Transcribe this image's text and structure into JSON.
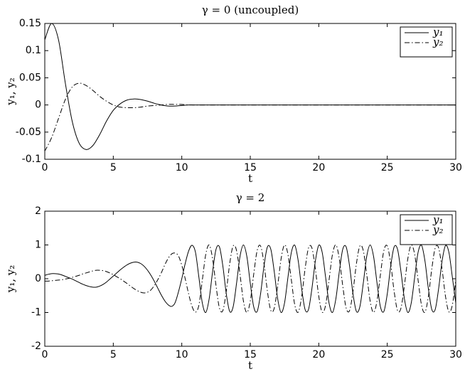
{
  "chart_data": [
    {
      "type": "line",
      "title": "γ = 0 (uncoupled)",
      "x_label": "t",
      "y_label": "y₁, y₂",
      "x": [
        0,
        0.5,
        1,
        1.5,
        2,
        2.5,
        3,
        3.5,
        4,
        4.5,
        5,
        5.5,
        6,
        6.5,
        7,
        7.5,
        8,
        8.5,
        9,
        9.5,
        10,
        10.5,
        11,
        11.5,
        12,
        15,
        20,
        25,
        30
      ],
      "series": [
        {
          "name": "y₁",
          "color": "#000000",
          "linestyle": "solid",
          "values": [
            0.12,
            0.15,
            0.12,
            0.04,
            -0.03,
            -0.07,
            -0.082,
            -0.075,
            -0.055,
            -0.03,
            -0.01,
            0.002,
            0.009,
            0.011,
            0.01,
            0.007,
            0.003,
            0,
            -0.002,
            -0.002,
            -0.001,
            0,
            0,
            0,
            0,
            0,
            0,
            0,
            0
          ]
        },
        {
          "name": "y₂",
          "color": "#000000",
          "linestyle": "dashdot",
          "values": [
            -0.085,
            -0.06,
            -0.025,
            0.01,
            0.033,
            0.04,
            0.036,
            0.027,
            0.016,
            0.007,
            0,
            -0.004,
            -0.005,
            -0.005,
            -0.004,
            -0.002,
            -0.001,
            0,
            0.001,
            0.001,
            0.001,
            0,
            0,
            0,
            0,
            0,
            0,
            0,
            0
          ]
        }
      ],
      "xlim": [
        0,
        30
      ],
      "xticks": [
        0,
        5,
        10,
        15,
        20,
        25,
        30
      ],
      "ylim": [
        -0.1,
        0.15
      ],
      "yticks": [
        -0.1,
        -0.05,
        0,
        0.05,
        0.1,
        0.15
      ],
      "legend": "upper right"
    },
    {
      "type": "line",
      "title": "γ = 2",
      "x_label": "t",
      "y_label": "y₁, y₂",
      "x": [
        0,
        0.25,
        0.5,
        0.75,
        1,
        1.25,
        1.5,
        1.75,
        2,
        2.25,
        2.5,
        2.75,
        3,
        3.25,
        3.5,
        3.75,
        4,
        4.25,
        4.5,
        4.75,
        5,
        5.25,
        5.5,
        5.75,
        6,
        6.25,
        6.5,
        6.75,
        7,
        7.25,
        7.5,
        7.75,
        8,
        8.25,
        8.5,
        8.75,
        9,
        9.25,
        9.5,
        9.75,
        10,
        10.25,
        10.5,
        10.75,
        11,
        11.25,
        11.5,
        11.75,
        12,
        12.25,
        12.5,
        12.75,
        13,
        13.25,
        13.5,
        13.75,
        14,
        14.25,
        14.5,
        14.75,
        15,
        15.25,
        15.5,
        15.75,
        16,
        16.25,
        16.5,
        16.75,
        17,
        17.25,
        17.5,
        17.75,
        18,
        18.25,
        18.5,
        18.75,
        19,
        19.25,
        19.5,
        19.75,
        20,
        20.25,
        20.5,
        20.75,
        21,
        21.25,
        21.5,
        21.75,
        22,
        22.25,
        22.5,
        22.75,
        23,
        23.25,
        23.5,
        23.75,
        24,
        24.25,
        24.5,
        24.75,
        25,
        25.25,
        25.5,
        25.75,
        26,
        26.25,
        26.5,
        26.75,
        27,
        27.25,
        27.5,
        27.75,
        28,
        28.25,
        28.5,
        28.75,
        29,
        29.25,
        29.5,
        29.75,
        30
      ],
      "series": [
        {
          "name": "y₁",
          "color": "#000000",
          "linestyle": "solid",
          "values": [
            0.1,
            0.13,
            0.15,
            0.15,
            0.14,
            0.11,
            0.07,
            0.03,
            -0.01,
            -0.06,
            -0.11,
            -0.16,
            -0.2,
            -0.23,
            -0.25,
            -0.25,
            -0.22,
            -0.17,
            -0.1,
            -0.01,
            0.08,
            0.17,
            0.26,
            0.34,
            0.41,
            0.46,
            0.49,
            0.49,
            0.45,
            0.37,
            0.25,
            0.1,
            -0.08,
            -0.28,
            -0.48,
            -0.65,
            -0.77,
            -0.82,
            -0.72,
            -0.4,
            0,
            0.45,
            0.82,
            0.99,
            0.78,
            0.04,
            -0.72,
            -1,
            -0.59,
            0.21,
            0.87,
            0.94,
            0.37,
            -0.45,
            -0.97,
            -0.83,
            -0.13,
            0.66,
            1,
            0.66,
            -0.13,
            -0.83,
            -0.97,
            -0.45,
            0.37,
            0.94,
            0.87,
            0.21,
            -0.59,
            -1,
            -0.72,
            0.04,
            0.78,
            0.99,
            0.53,
            -0.29,
            -0.91,
            -0.91,
            -0.29,
            0.52,
            0.99,
            0.78,
            0.04,
            -0.72,
            -1,
            -0.59,
            0.21,
            0.87,
            0.94,
            0.37,
            -0.45,
            -0.97,
            -0.83,
            -0.13,
            0.66,
            1,
            0.66,
            -0.12,
            -0.83,
            -0.97,
            -0.45,
            0.37,
            0.94,
            0.87,
            0.21,
            -0.59,
            -1,
            -0.72,
            0.04,
            0.78,
            0.99,
            0.53,
            -0.29,
            -0.91,
            -0.91,
            -0.29,
            0.52,
            0.98,
            0.78,
            0.05,
            -0.72
          ]
        },
        {
          "name": "y₂",
          "color": "#000000",
          "linestyle": "dashdot",
          "values": [
            -0.07,
            -0.07,
            -0.06,
            -0.05,
            -0.04,
            -0.03,
            -0.01,
            0.01,
            0.04,
            0.07,
            0.1,
            0.14,
            0.17,
            0.2,
            0.23,
            0.25,
            0.25,
            0.24,
            0.21,
            0.17,
            0.12,
            0.06,
            0,
            -0.07,
            -0.14,
            -0.22,
            -0.29,
            -0.35,
            -0.4,
            -0.42,
            -0.4,
            -0.33,
            -0.2,
            -0.03,
            0.17,
            0.4,
            0.6,
            0.73,
            0.76,
            0.68,
            0.4,
            0,
            -0.45,
            -0.82,
            -0.99,
            -0.78,
            -0.04,
            0.72,
            1,
            0.59,
            -0.21,
            -0.87,
            -0.94,
            -0.37,
            0.45,
            0.97,
            0.83,
            0.13,
            -0.66,
            -1,
            -0.66,
            0.13,
            0.83,
            0.97,
            0.45,
            -0.37,
            -0.94,
            -0.87,
            -0.21,
            0.59,
            1,
            0.72,
            -0.04,
            -0.78,
            -0.99,
            -0.53,
            0.29,
            0.91,
            0.91,
            0.29,
            -0.52,
            -0.99,
            -0.78,
            -0.04,
            0.72,
            1,
            0.59,
            -0.21,
            -0.87,
            -0.94,
            -0.37,
            0.45,
            0.97,
            0.83,
            0.13,
            -0.66,
            -1,
            -0.66,
            0.12,
            0.83,
            0.97,
            0.45,
            -0.37,
            -0.94,
            -0.87,
            -0.21,
            0.59,
            1,
            0.72,
            -0.04,
            -0.78,
            -0.99,
            -0.53,
            0.29,
            0.91,
            0.91,
            0.29,
            -0.52,
            -0.98,
            -0.78,
            -0.05
          ]
        }
      ],
      "xlim": [
        0,
        30
      ],
      "xticks": [
        0,
        5,
        10,
        15,
        20,
        25,
        30
      ],
      "ylim": [
        -2,
        2
      ],
      "yticks": [
        -2,
        -1,
        0,
        1,
        2
      ],
      "legend": "upper right"
    }
  ]
}
